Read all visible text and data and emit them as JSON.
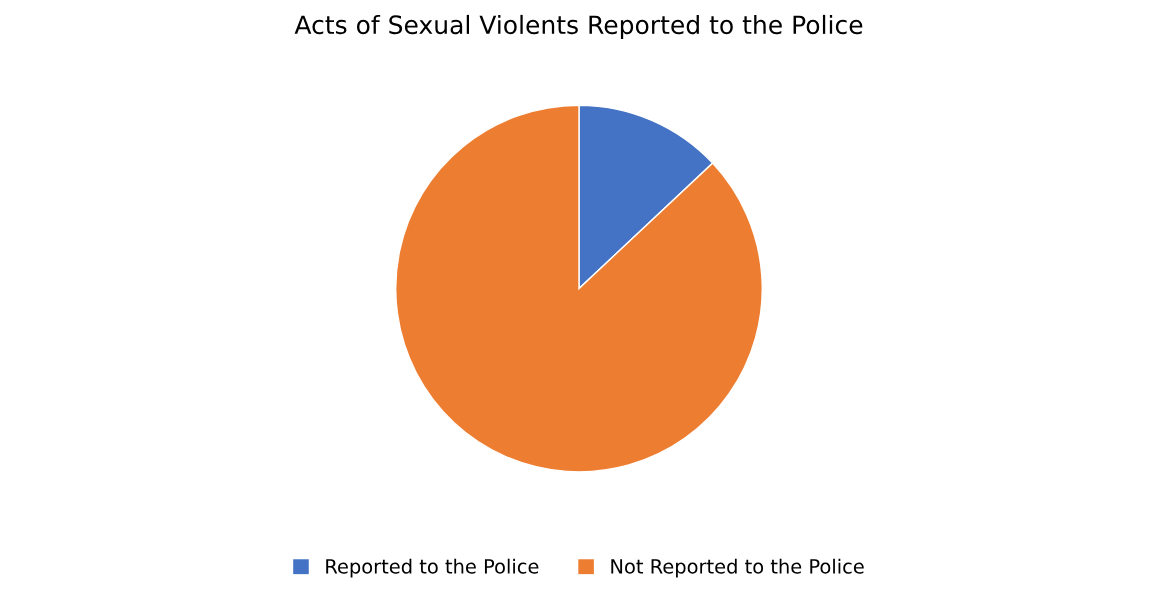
{
  "chart_data": {
    "type": "pie",
    "title": "Acts of Sexual Violents Reported to the Police",
    "categories": [
      "Reported to the Police",
      "Not Reported to the Police"
    ],
    "values": [
      13,
      87
    ],
    "colors": [
      "#4472c4",
      "#ed7d31"
    ],
    "legend": "bottom"
  }
}
